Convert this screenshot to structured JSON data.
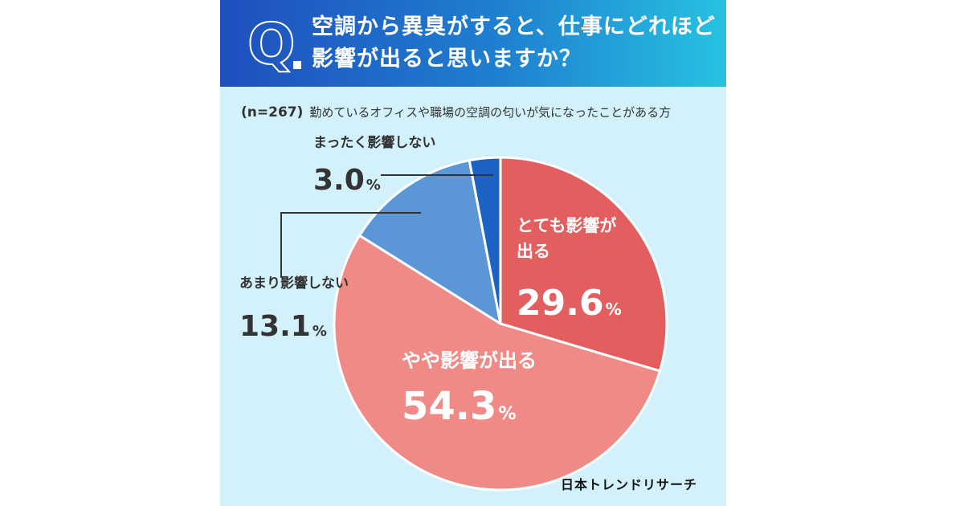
{
  "question": {
    "letter": "Q",
    "title_line1": "空調から異臭がすると、仕事にどれほど",
    "title_line2": "影響が出ると思いますか？"
  },
  "sample": {
    "n_label": "(n=267)",
    "description": "勤めているオフィスや職場の空調の匂いが気になったことがある方"
  },
  "credit": "日本トレンドリサーチ",
  "colors": {
    "header_start": "#1f4fbd",
    "header_end": "#27c2e0",
    "background": "#d2f1fb"
  },
  "chart_data": {
    "type": "pie",
    "unit": "%",
    "start_angle_deg": 0,
    "direction": "clockwise",
    "slices": [
      {
        "label": "とても影響が出る",
        "value": 29.6,
        "color": "#e35e5e"
      },
      {
        "label": "やや影響が出る",
        "value": 54.3,
        "color": "#ef8a87"
      },
      {
        "label": "あまり影響しない",
        "value": 13.1,
        "color": "#5b96d6"
      },
      {
        "label": "まったく影響しない",
        "value": 3.0,
        "color": "#1c63c4"
      }
    ]
  }
}
